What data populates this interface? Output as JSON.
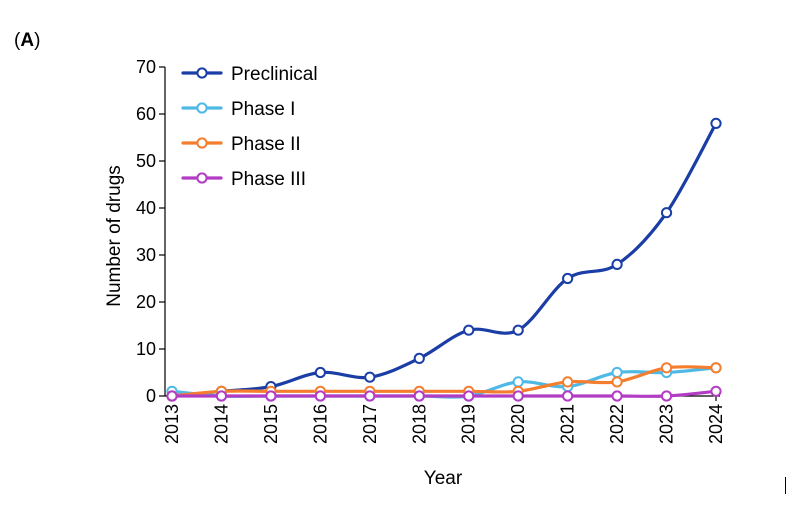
{
  "panel_label": {
    "open": "(",
    "letter": "A",
    "close": ")"
  },
  "chart_data": {
    "type": "line",
    "xlabel": "Year",
    "ylabel": "Number of drugs",
    "x": [
      "2013",
      "2014",
      "2015",
      "2016",
      "2017",
      "2018",
      "2019",
      "2020",
      "2021",
      "2022",
      "2023",
      "2024"
    ],
    "ylim": [
      0,
      70
    ],
    "yticks": [
      0,
      10,
      20,
      30,
      40,
      50,
      60,
      70
    ],
    "grid": false,
    "legend_position": "top-left",
    "series": [
      {
        "name": "Preclinical",
        "color": "#1a3ea6",
        "values": [
          0,
          1,
          2,
          5,
          4,
          8,
          14,
          14,
          25,
          28,
          39,
          58
        ]
      },
      {
        "name": "Phase I",
        "color": "#4fb9e6",
        "values": [
          1,
          0,
          0,
          0,
          0,
          0,
          0,
          3,
          2,
          5,
          5,
          6
        ]
      },
      {
        "name": "Phase II",
        "color": "#f47e2e",
        "values": [
          0,
          1,
          1,
          1,
          1,
          1,
          1,
          1,
          3,
          3,
          6,
          6
        ]
      },
      {
        "name": "Phase III",
        "color": "#b23cc4",
        "values": [
          0,
          0,
          0,
          0,
          0,
          0,
          0,
          0,
          0,
          0,
          0,
          1
        ]
      }
    ]
  }
}
